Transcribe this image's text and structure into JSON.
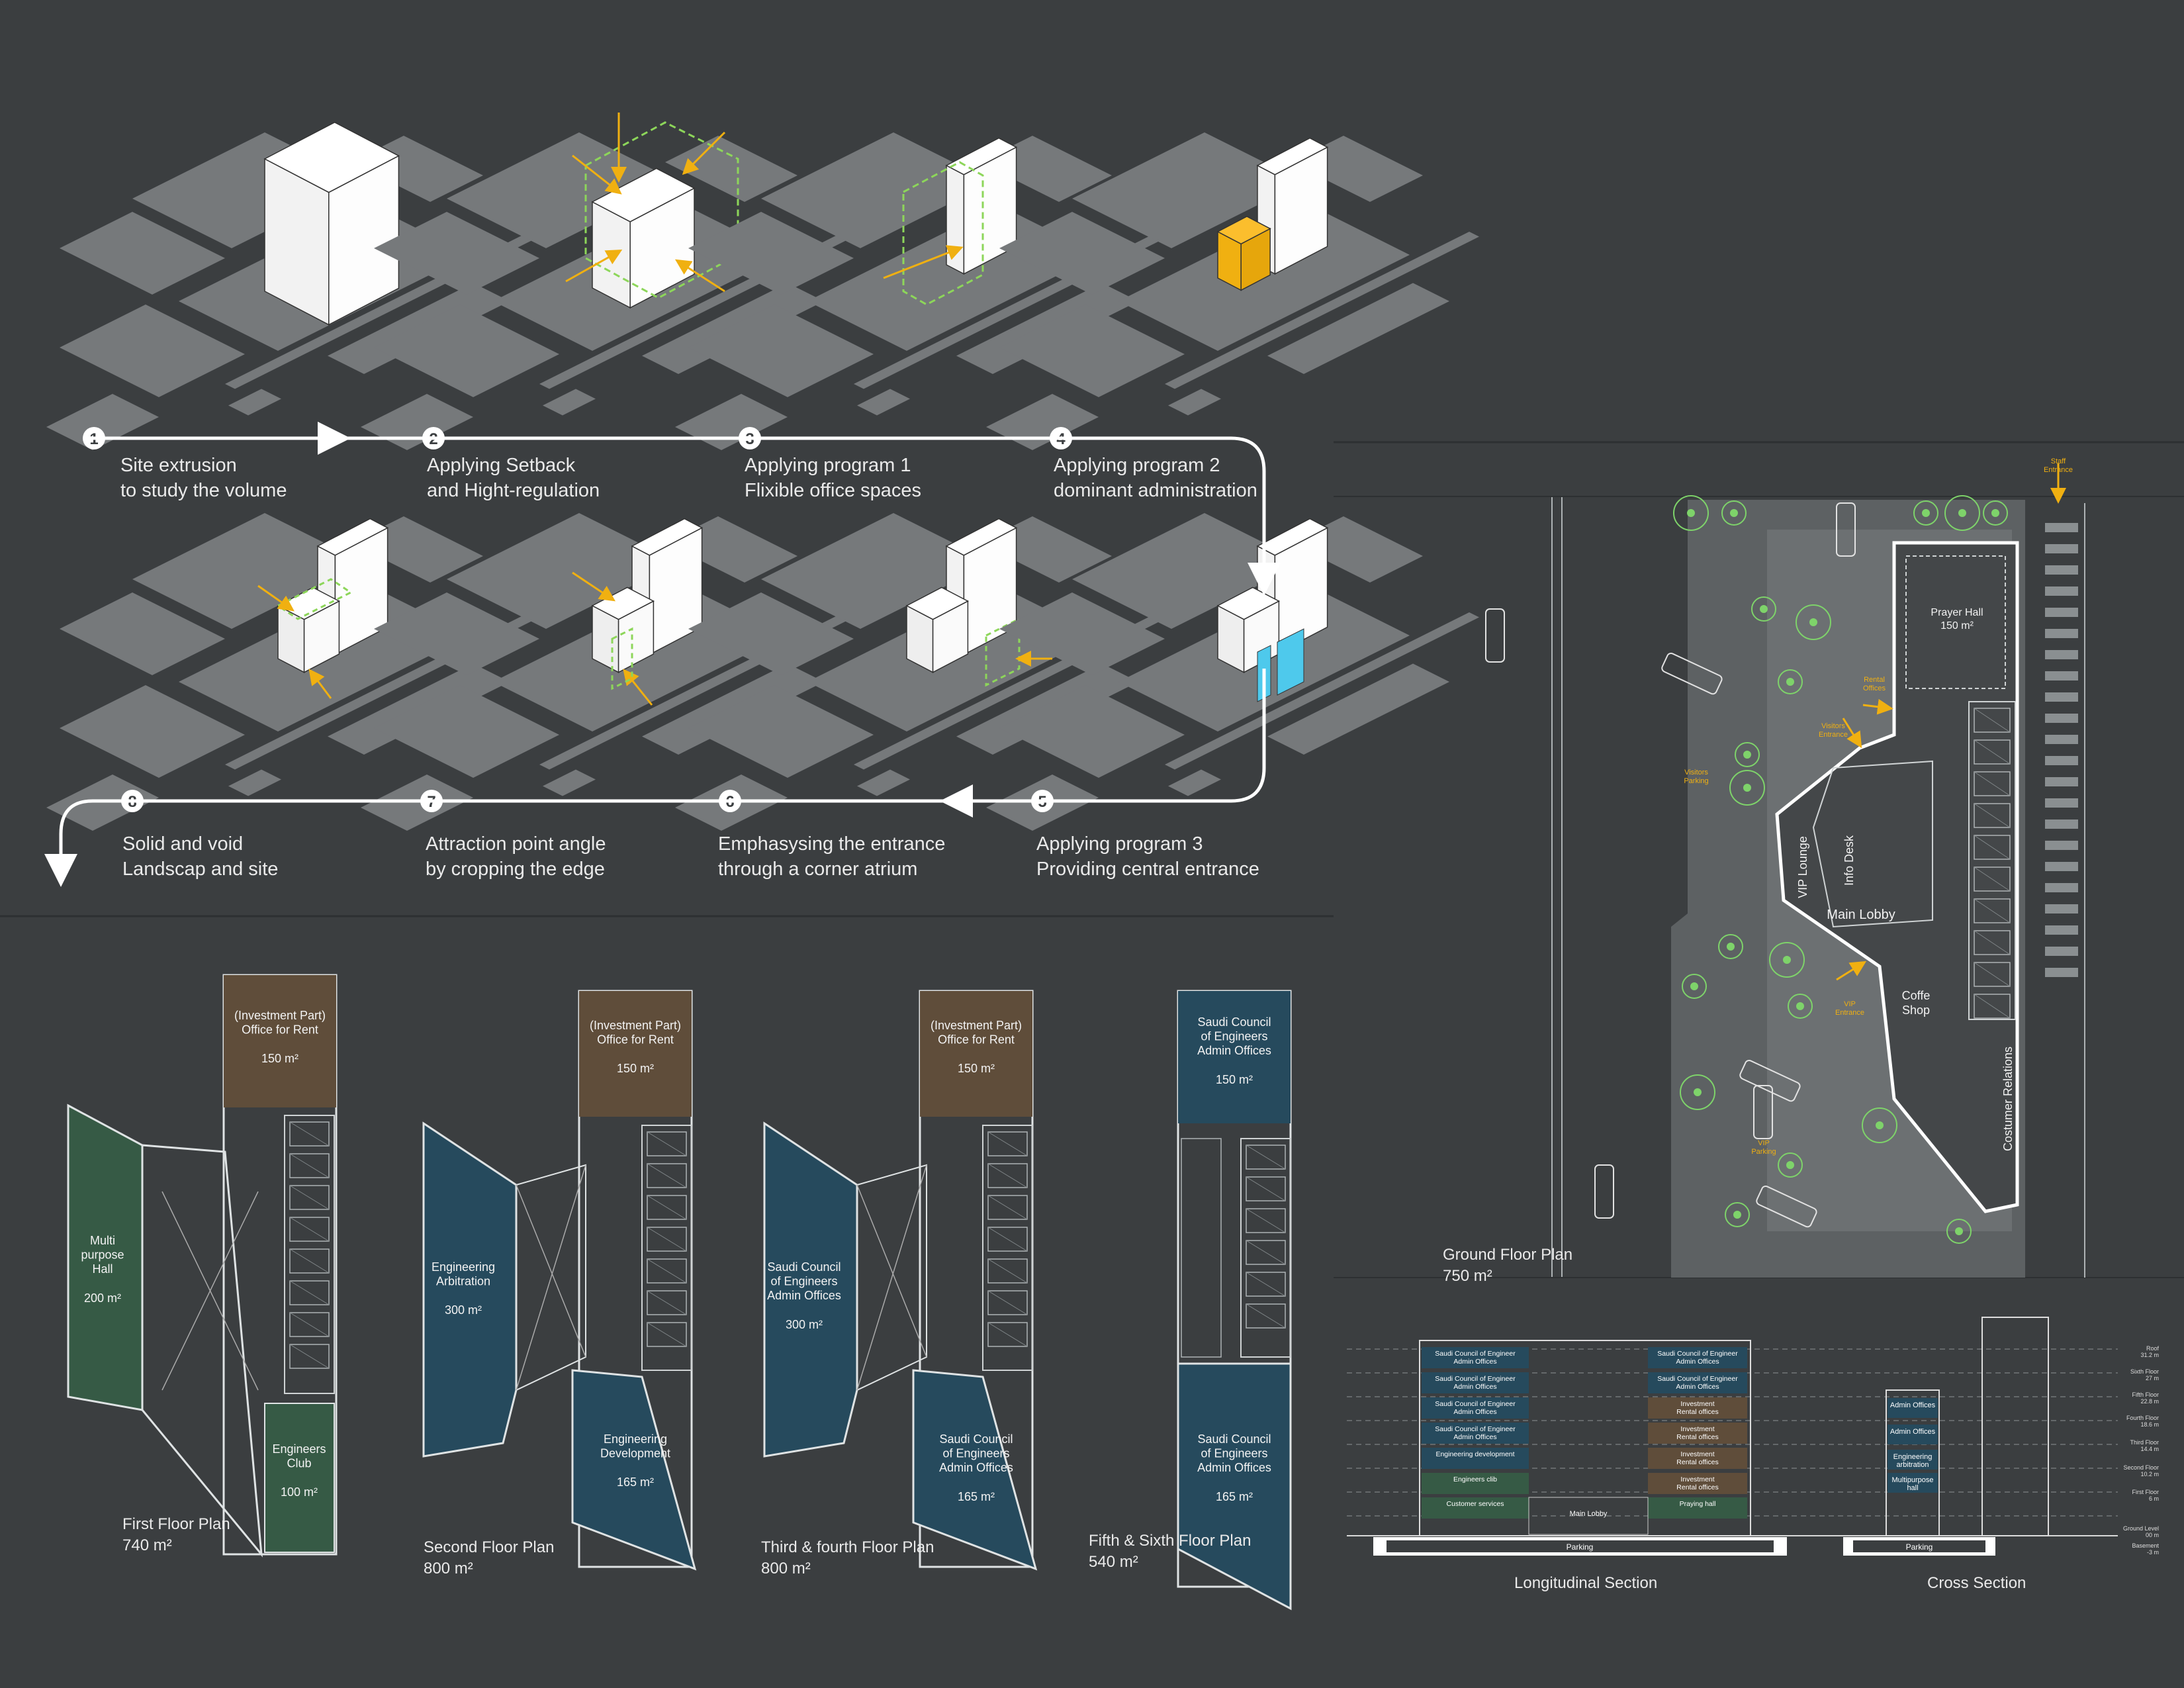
{
  "colors": {
    "background": "#3b3e40",
    "block": "#76797b",
    "white": "#ffffff",
    "accent": "#f0b011",
    "green": "#8dd65a",
    "cyan": "#4ec9ec",
    "brown": "#5f4d3a",
    "teal": "#264a5d",
    "dark_green": "#365a45"
  },
  "steps": [
    {
      "n": "1",
      "line1": "Site extrusion",
      "line2": "to study the volume"
    },
    {
      "n": "2",
      "line1": "Applying Setback",
      "line2": "and Hight-regulation"
    },
    {
      "n": "3",
      "line1": "Applying program 1",
      "line2": "Flixible office spaces"
    },
    {
      "n": "4",
      "line1": "Applying program 2",
      "line2": "dominant administration"
    },
    {
      "n": "5",
      "line1": "Applying program 3",
      "line2": "Providing central entrance"
    },
    {
      "n": "6",
      "line1": "Emphasysing the entrance",
      "line2": "through a corner atrium"
    },
    {
      "n": "7",
      "line1": "Attraction point angle",
      "line2": "by cropping the edge"
    },
    {
      "n": "8",
      "line1": "Solid and void",
      "line2": "Landscap and site"
    }
  ],
  "plans": [
    {
      "title": "First Floor Plan",
      "area": "740 m²",
      "rooms": [
        {
          "name": "(Investment Part)\nOffice for Rent",
          "area": "150 m²"
        },
        {
          "name": "Multi\npurpose\nHall",
          "area": "200 m²"
        },
        {
          "name": "Engineers\nClub",
          "area": "100 m²"
        }
      ]
    },
    {
      "title": "Second Floor Plan",
      "area": "800 m²",
      "rooms": [
        {
          "name": "(Investment Part)\nOffice for Rent",
          "area": "150 m²"
        },
        {
          "name": "Engineering\nArbitration",
          "area": "300 m²"
        },
        {
          "name": "Engineering\nDevelopment",
          "area": "165 m²"
        }
      ]
    },
    {
      "title": "Third & fourth Floor Plan",
      "area": "800 m²",
      "rooms": [
        {
          "name": "(Investment Part)\nOffice for Rent",
          "area": "150 m²"
        },
        {
          "name": "Saudi Council\nof Engineers\nAdmin Offices",
          "area": "300 m²"
        },
        {
          "name": "Saudi Council\nof Engineers\nAdmin Offices",
          "area": "165 m²"
        }
      ]
    },
    {
      "title": "Fifth & Sixth Floor Plan",
      "area": "540 m²",
      "rooms": [
        {
          "name": "Saudi Council\nof Engineers\nAdmin Offices",
          "area": "150 m²"
        },
        {
          "name": "Saudi Council\nof Engineers\nAdmin Offices",
          "area": "165 m²"
        }
      ]
    }
  ],
  "ground": {
    "title": "Ground Floor Plan",
    "area": "750 m²",
    "prayer_hall": "Prayer Hall",
    "prayer_area": "150 m²",
    "main_lobby": "Main Lobby",
    "info_desk": "Info Desk",
    "vip_lounge": "VIP Lounge",
    "coffe_shop": "Coffe\nShop",
    "customer_relations": "Costumer Relations",
    "staff_entrance": "Staff\nEntrance",
    "rental_offices": "Rental\nOffices",
    "visitors_entrance": "Visitors\nEntrance",
    "visitors_parking": "Visitors\nParking",
    "vip_entrance": "VIP\nEntrance",
    "vip_parking": "VIP\nParking"
  },
  "long_section": {
    "title": "Longitudinal Section",
    "left": [
      "Saudi Council of Engineer\nAdmin Offices",
      "Saudi Council of Engineer\nAdmin Offices",
      "Saudi Council of Engineer\nAdmin Offices",
      "Saudi Council of Engineer\nAdmin Offices",
      "Engineering development",
      "Engineers clib",
      "Customer services"
    ],
    "right": [
      "Saudi Council of Engineer\nAdmin Offices",
      "Saudi Council of Engineer\nAdmin Offices",
      "Investment\nRental offices",
      "Investment\nRental offices",
      "Investment\nRental offices",
      "Investment\nRental offices",
      "Praying hall"
    ],
    "mid": "Main Lobby",
    "parking": "Parking"
  },
  "cross_section": {
    "title": "Cross Section",
    "rooms": [
      "Admin Offices",
      "Admin Offices",
      "Engineering\narbitration",
      "Multipurpose\nhall"
    ],
    "parking": "Parking",
    "levels": [
      "Roof\n31.2 m",
      "Sixth Floor\n27 m",
      "Fifth Floor\n22.8 m",
      "Fourth Floor\n18.6 m",
      "Third Floor\n14.4 m",
      "Second Floor\n10.2 m",
      "First Floor\n6 m",
      "Ground Level\n00 m",
      "Basement\n-3 m"
    ]
  }
}
